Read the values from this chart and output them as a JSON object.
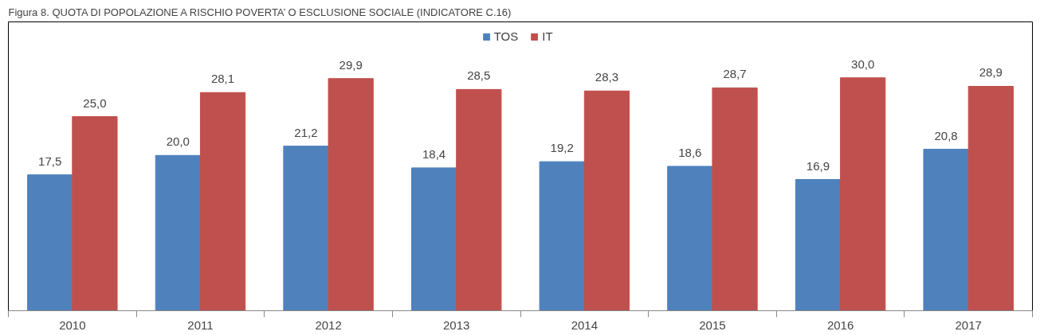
{
  "chart_data": {
    "type": "bar",
    "title": "Figura 8. QUOTA DI POPOLAZIONE A RISCHIO POVERTA’ O ESCLUSIONE SOCIALE (INDICATORE C.16)",
    "categories": [
      "2010",
      "2011",
      "2012",
      "2013",
      "2014",
      "2015",
      "2016",
      "2017"
    ],
    "series": [
      {
        "name": "TOS",
        "color": "#4f81bd",
        "values": [
          17.5,
          20.0,
          21.2,
          18.4,
          19.2,
          18.6,
          16.9,
          20.8
        ],
        "value_labels": [
          "17,5",
          "20,0",
          "21,2",
          "18,4",
          "19,2",
          "18,6",
          "16,9",
          "20,8"
        ]
      },
      {
        "name": "IT",
        "color": "#c0504d",
        "values": [
          25.0,
          28.1,
          29.9,
          28.5,
          28.3,
          28.7,
          30.0,
          28.9
        ],
        "value_labels": [
          "25,0",
          "28,1",
          "29,9",
          "28,5",
          "28,3",
          "28,7",
          "30,0",
          "28,9"
        ]
      }
    ],
    "legend": "top",
    "grid": false
  }
}
